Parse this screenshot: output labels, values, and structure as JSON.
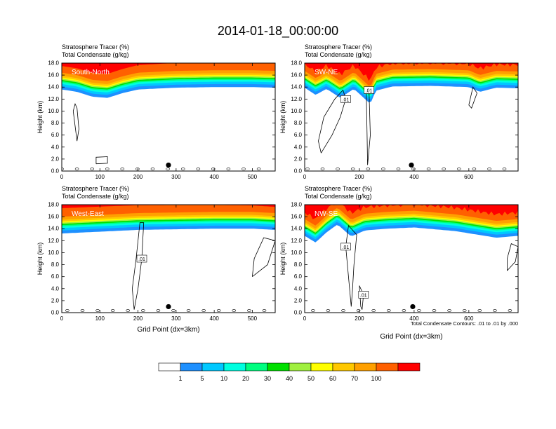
{
  "title": "2014-01-18_00:00:00",
  "colors": {
    "levels": [
      "#ffffff",
      "#1e90ff",
      "#00c8ff",
      "#00ffe0",
      "#00ff80",
      "#00e000",
      "#a0f040",
      "#ffff00",
      "#ffc800",
      "#ffa000",
      "#ff6000",
      "#ff0000"
    ]
  },
  "colorbar": {
    "labels": [
      "1",
      "5",
      "10",
      "20",
      "30",
      "40",
      "50",
      "60",
      "70",
      "100"
    ]
  },
  "chart_data": [
    {
      "type": "heatmap",
      "panel": "South-North",
      "header_line1": "Stratosphere Tracer   (%)",
      "header_line2": "Total Condensate   (g/kg)",
      "ylabel": "Height (km)",
      "xlabel": "",
      "xlim": [
        0,
        560
      ],
      "ylim": [
        0,
        18
      ],
      "xticks": [
        "0",
        "100",
        "200",
        "300",
        "400",
        "500"
      ],
      "yticks": [
        "0.0",
        "2.0",
        "4.0",
        "6.0",
        "8.0",
        "10.0",
        "12.0",
        "14.0",
        "16.0",
        "18.0"
      ],
      "tropopause_km": [
        [
          0,
          14.4
        ],
        [
          40,
          14.0
        ],
        [
          80,
          13.2
        ],
        [
          120,
          13.0
        ],
        [
          160,
          13.8
        ],
        [
          200,
          14.4
        ],
        [
          300,
          14.7
        ],
        [
          400,
          14.8
        ],
        [
          500,
          14.8
        ],
        [
          560,
          14.7
        ]
      ],
      "contours": [
        {
          "label": "",
          "points": [
            [
              40,
              5.0
            ],
            [
              45,
              7.0
            ],
            [
              40,
              10.5
            ],
            [
              35,
              11.2
            ],
            [
              30,
              10.0
            ],
            [
              33,
              8.5
            ],
            [
              40,
              5.0
            ]
          ]
        },
        {
          "label": "",
          "points": [
            [
              90,
              1.2
            ],
            [
              120,
              1.3
            ],
            [
              120,
              2.4
            ],
            [
              90,
              2.3
            ],
            [
              90,
              1.2
            ]
          ]
        }
      ],
      "marker": {
        "x": 280,
        "y": 1.0
      }
    },
    {
      "type": "heatmap",
      "panel": "SW-NE",
      "header_line1": "Stratosphere Tracer   (%)",
      "header_line2": "Total Condensate   (g/kg)",
      "ylabel": "Height (km)",
      "xlabel": "",
      "xlim": [
        0,
        780
      ],
      "ylim": [
        0,
        18
      ],
      "xticks": [
        "0",
        "200",
        "400",
        "600"
      ],
      "yticks": [
        "0.0",
        "2.0",
        "4.0",
        "6.0",
        "8.0",
        "10.0",
        "12.0",
        "14.0",
        "16.0",
        "18.0"
      ],
      "tropopause_km": [
        [
          0,
          14.7
        ],
        [
          40,
          13.5
        ],
        [
          80,
          14.5
        ],
        [
          130,
          13.0
        ],
        [
          180,
          14.5
        ],
        [
          240,
          12.0
        ],
        [
          260,
          14.2
        ],
        [
          320,
          14.9
        ],
        [
          460,
          15.0
        ],
        [
          600,
          14.8
        ],
        [
          640,
          14.0
        ],
        [
          700,
          14.7
        ],
        [
          780,
          14.6
        ]
      ],
      "contours": [
        {
          "label": ".01",
          "points": [
            [
              60,
              3.0
            ],
            [
              100,
              6.0
            ],
            [
              130,
              9.0
            ],
            [
              150,
              12.0
            ],
            [
              140,
              13.5
            ],
            [
              110,
              12.0
            ],
            [
              70,
              9.0
            ],
            [
              50,
              5.0
            ],
            [
              60,
              3.0
            ]
          ]
        },
        {
          "label": ".01",
          "points": [
            [
              230,
              1.0
            ],
            [
              240,
              6.0
            ],
            [
              235,
              13.5
            ],
            [
              225,
              13.5
            ],
            [
              228,
              6.0
            ],
            [
              230,
              1.0
            ]
          ]
        },
        {
          "label": "",
          "points": [
            [
              600,
              11.0
            ],
            [
              615,
              14.0
            ],
            [
              630,
              13.0
            ],
            [
              610,
              10.5
            ],
            [
              600,
              11.0
            ]
          ]
        }
      ],
      "marker": {
        "x": 390,
        "y": 1.0
      }
    },
    {
      "type": "heatmap",
      "panel": "West-East",
      "header_line1": "Stratosphere Tracer   (%)",
      "header_line2": "Total Condensate   (g/kg)",
      "ylabel": "Height (km)",
      "xlabel": "Grid Point (dx=3km)",
      "xlim": [
        0,
        560
      ],
      "ylim": [
        0,
        18
      ],
      "xticks": [
        "0",
        "100",
        "200",
        "300",
        "400",
        "500"
      ],
      "yticks": [
        "0.0",
        "2.0",
        "4.0",
        "6.0",
        "8.0",
        "10.0",
        "12.0",
        "14.0",
        "16.0",
        "18.0"
      ],
      "tropopause_km": [
        [
          0,
          14.0
        ],
        [
          100,
          14.3
        ],
        [
          200,
          14.6
        ],
        [
          300,
          14.7
        ],
        [
          400,
          14.8
        ],
        [
          500,
          14.8
        ],
        [
          560,
          14.6
        ]
      ],
      "contours": [
        {
          "label": ".01",
          "points": [
            [
              190,
              0.5
            ],
            [
              200,
              4.0
            ],
            [
              210,
              9.0
            ],
            [
              215,
              15.0
            ],
            [
              205,
              15.0
            ],
            [
              195,
              9.0
            ],
            [
              185,
              4.0
            ],
            [
              190,
              0.5
            ]
          ]
        },
        {
          "label": "",
          "points": [
            [
              500,
              6.0
            ],
            [
              540,
              8.0
            ],
            [
              560,
              12.0
            ],
            [
              530,
              12.5
            ],
            [
              505,
              9.0
            ],
            [
              500,
              6.0
            ]
          ]
        }
      ],
      "marker": {
        "x": 280,
        "y": 1.0
      }
    },
    {
      "type": "heatmap",
      "panel": "NW-SE",
      "header_line1": "Stratosphere Tracer   (%)",
      "header_line2": "Total Condensate   (g/kg)",
      "ylabel": "Height (km)",
      "xlabel": "Grid Point (dx=3km)",
      "xlim": [
        0,
        780
      ],
      "ylim": [
        0,
        18
      ],
      "xticks": [
        "0",
        "200",
        "400",
        "600"
      ],
      "yticks": [
        "0.0",
        "2.0",
        "4.0",
        "6.0",
        "8.0",
        "10.0",
        "12.0",
        "14.0",
        "16.0",
        "18.0"
      ],
      "tropopause_km": [
        [
          0,
          13.6
        ],
        [
          40,
          12.5
        ],
        [
          80,
          14.2
        ],
        [
          120,
          15.5
        ],
        [
          170,
          13.5
        ],
        [
          220,
          14.5
        ],
        [
          300,
          14.8
        ],
        [
          400,
          15.0
        ],
        [
          550,
          14.4
        ],
        [
          700,
          13.3
        ],
        [
          780,
          13.6
        ]
      ],
      "contours": [
        {
          "label": ".01",
          "points": [
            [
              170,
              1.0
            ],
            [
              160,
              6.0
            ],
            [
              150,
              11.0
            ],
            [
              160,
              14.5
            ],
            [
              190,
              13.0
            ],
            [
              180,
              8.0
            ],
            [
              175,
              4.0
            ],
            [
              170,
              1.0
            ]
          ]
        },
        {
          "label": ".01",
          "points": [
            [
              210,
              0.5
            ],
            [
              215,
              3.0
            ],
            [
              200,
              4.5
            ],
            [
              205,
              1.0
            ],
            [
              210,
              0.5
            ]
          ]
        },
        {
          "label": "",
          "points": [
            [
              740,
              7.0
            ],
            [
              770,
              8.5
            ],
            [
              780,
              11.0
            ],
            [
              755,
              11.5
            ],
            [
              740,
              9.0
            ],
            [
              740,
              7.0
            ]
          ]
        }
      ],
      "marker": {
        "x": 395,
        "y": 1.0
      }
    }
  ],
  "footnote": "Total Condensate Contours: .01 to .01 by .000"
}
